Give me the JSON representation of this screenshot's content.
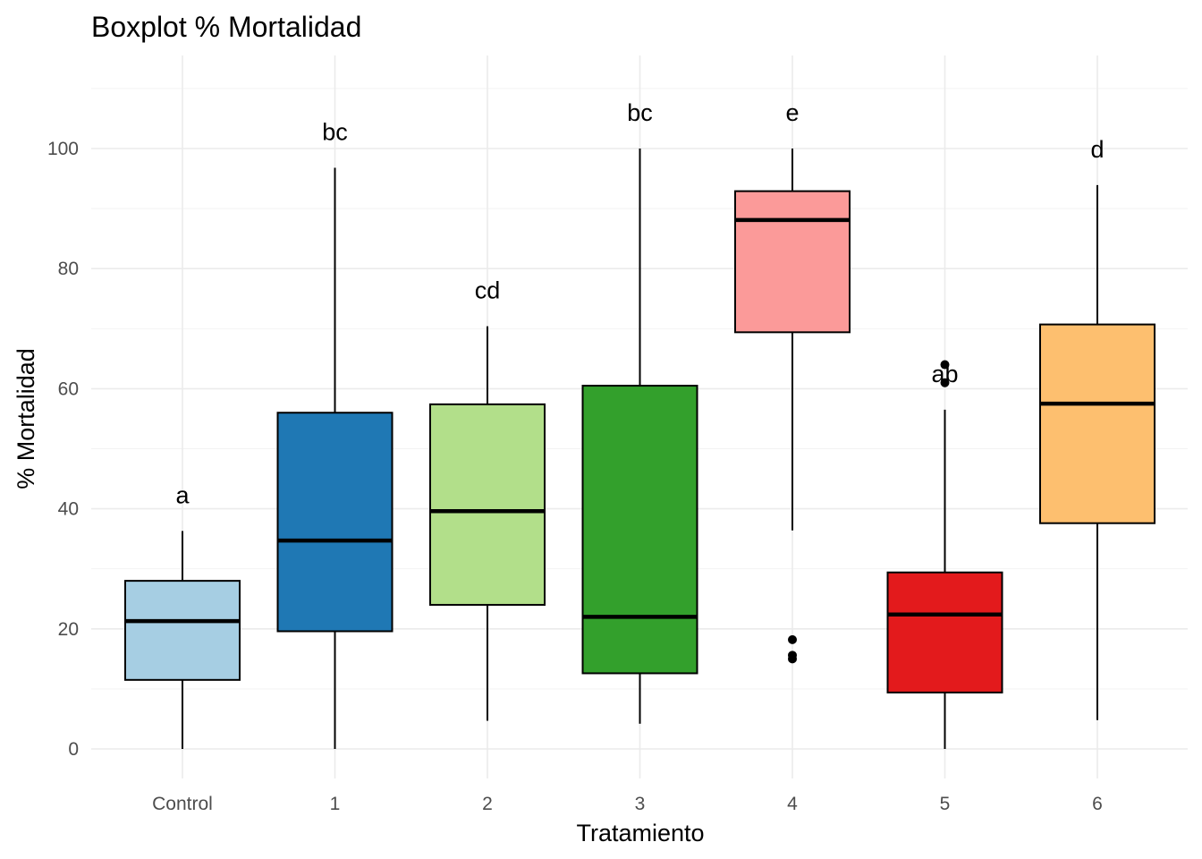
{
  "chart_data": {
    "type": "boxplot",
    "title": "Boxplot % Mortalidad",
    "xlabel": "Tratamiento",
    "ylabel": "% Mortalidad",
    "ylim": [
      -5,
      115
    ],
    "yticks": [
      0,
      20,
      40,
      60,
      80,
      100
    ],
    "grid": true,
    "legend": "none",
    "categories": [
      "Control",
      "1",
      "2",
      "3",
      "4",
      "5",
      "6"
    ],
    "boxes": [
      {
        "category": "Control",
        "whisker_low": 0,
        "q1": 11.5,
        "median": 21.3,
        "q3": 28,
        "whisker_high": 36.3,
        "outliers": [],
        "letter": "a",
        "color": "#a6cee3"
      },
      {
        "category": "1",
        "whisker_low": 0,
        "q1": 19.6,
        "median": 34.7,
        "q3": 56,
        "whisker_high": 96.8,
        "outliers": [],
        "letter": "bc",
        "color": "#1f78b4"
      },
      {
        "category": "2",
        "whisker_low": 4.7,
        "q1": 24,
        "median": 39.6,
        "q3": 57.4,
        "whisker_high": 70.4,
        "outliers": [],
        "letter": "cd",
        "color": "#b2df8a"
      },
      {
        "category": "3",
        "whisker_low": 4.2,
        "q1": 12.6,
        "median": 22,
        "q3": 60.5,
        "whisker_high": 100,
        "outliers": [],
        "letter": "bc",
        "color": "#33a02c"
      },
      {
        "category": "4",
        "whisker_low": 36.4,
        "q1": 69.4,
        "median": 88.1,
        "q3": 92.9,
        "whisker_high": 100,
        "outliers": [
          18.2,
          15.6,
          15
        ],
        "letter": "e",
        "color": "#fb9a99"
      },
      {
        "category": "5",
        "whisker_low": 0,
        "q1": 9.4,
        "median": 22.4,
        "q3": 29.4,
        "whisker_high": 56.5,
        "outliers": [
          64,
          61
        ],
        "letter": "ab",
        "color": "#e31a1c"
      },
      {
        "category": "6",
        "whisker_low": 4.8,
        "q1": 37.6,
        "median": 57.5,
        "q3": 70.7,
        "whisker_high": 93.9,
        "outliers": [],
        "letter": "d",
        "color": "#fdbf6f"
      }
    ]
  }
}
